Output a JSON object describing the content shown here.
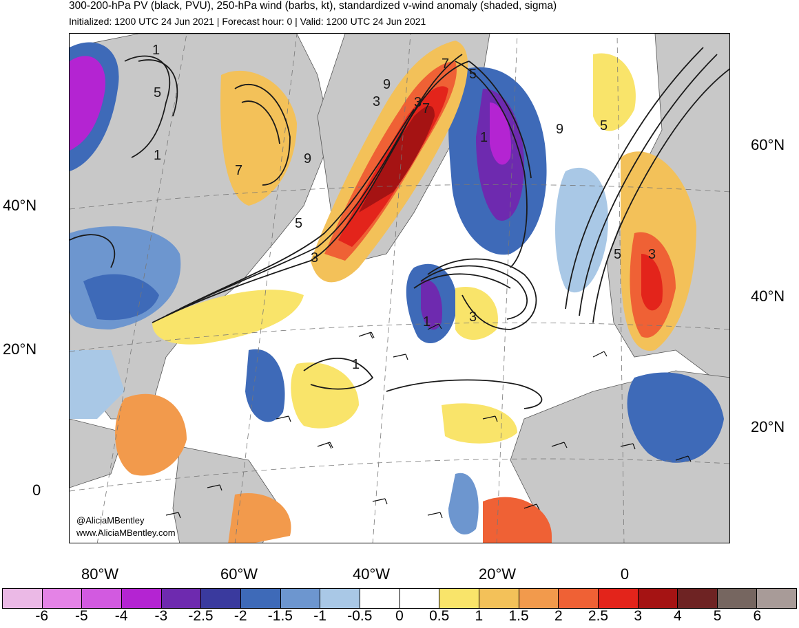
{
  "header": {
    "title": "300-200-hPa PV (black, PVU), 250-hPa wind (barbs, kt), standardized v-wind anomaly (shaded, sigma)",
    "subtitle": "Initialized: 1200 UTC 24 Jun 2021 | Forecast hour: 0 | Valid: 1200 UTC 24 Jun 2021"
  },
  "map": {
    "left_lat_labels": [
      "40°N",
      "20°N",
      "0"
    ],
    "right_lat_labels": [
      "60°N",
      "40°N",
      "20°N"
    ],
    "lon_labels": [
      "80°W",
      "60°W",
      "40°W",
      "20°W",
      "0"
    ],
    "contour_labels": [
      "5",
      "9",
      "7",
      "1",
      "3",
      "9",
      "7",
      "7",
      "5",
      "3",
      "3",
      "5",
      "9",
      "1",
      "5",
      "1",
      "3",
      "1",
      "5",
      "3",
      "1"
    ],
    "credit_handle": "@AliciaMBentley",
    "credit_url": "www.AliciaMBentley.com"
  },
  "colorbar": {
    "colors": [
      "#ebb9e6",
      "#e483e6",
      "#d25ae0",
      "#b424d2",
      "#6e2aaf",
      "#3a3a9e",
      "#3e6ab8",
      "#6d96cf",
      "#a9c8e6",
      "#ffffff",
      "#ffffff",
      "#f9e46a",
      "#f3c159",
      "#f29a4c",
      "#ef6135",
      "#e3241b",
      "#a51313",
      "#6e2323",
      "#766660",
      "#a89b98"
    ],
    "tick_labels": [
      "-6",
      "-5",
      "-4",
      "-3",
      "-2.5",
      "-2",
      "-1.5",
      "-1",
      "-0.5",
      "0",
      "0.5",
      "1",
      "1.5",
      "2",
      "2.5",
      "3",
      "4",
      "5",
      "6"
    ]
  }
}
